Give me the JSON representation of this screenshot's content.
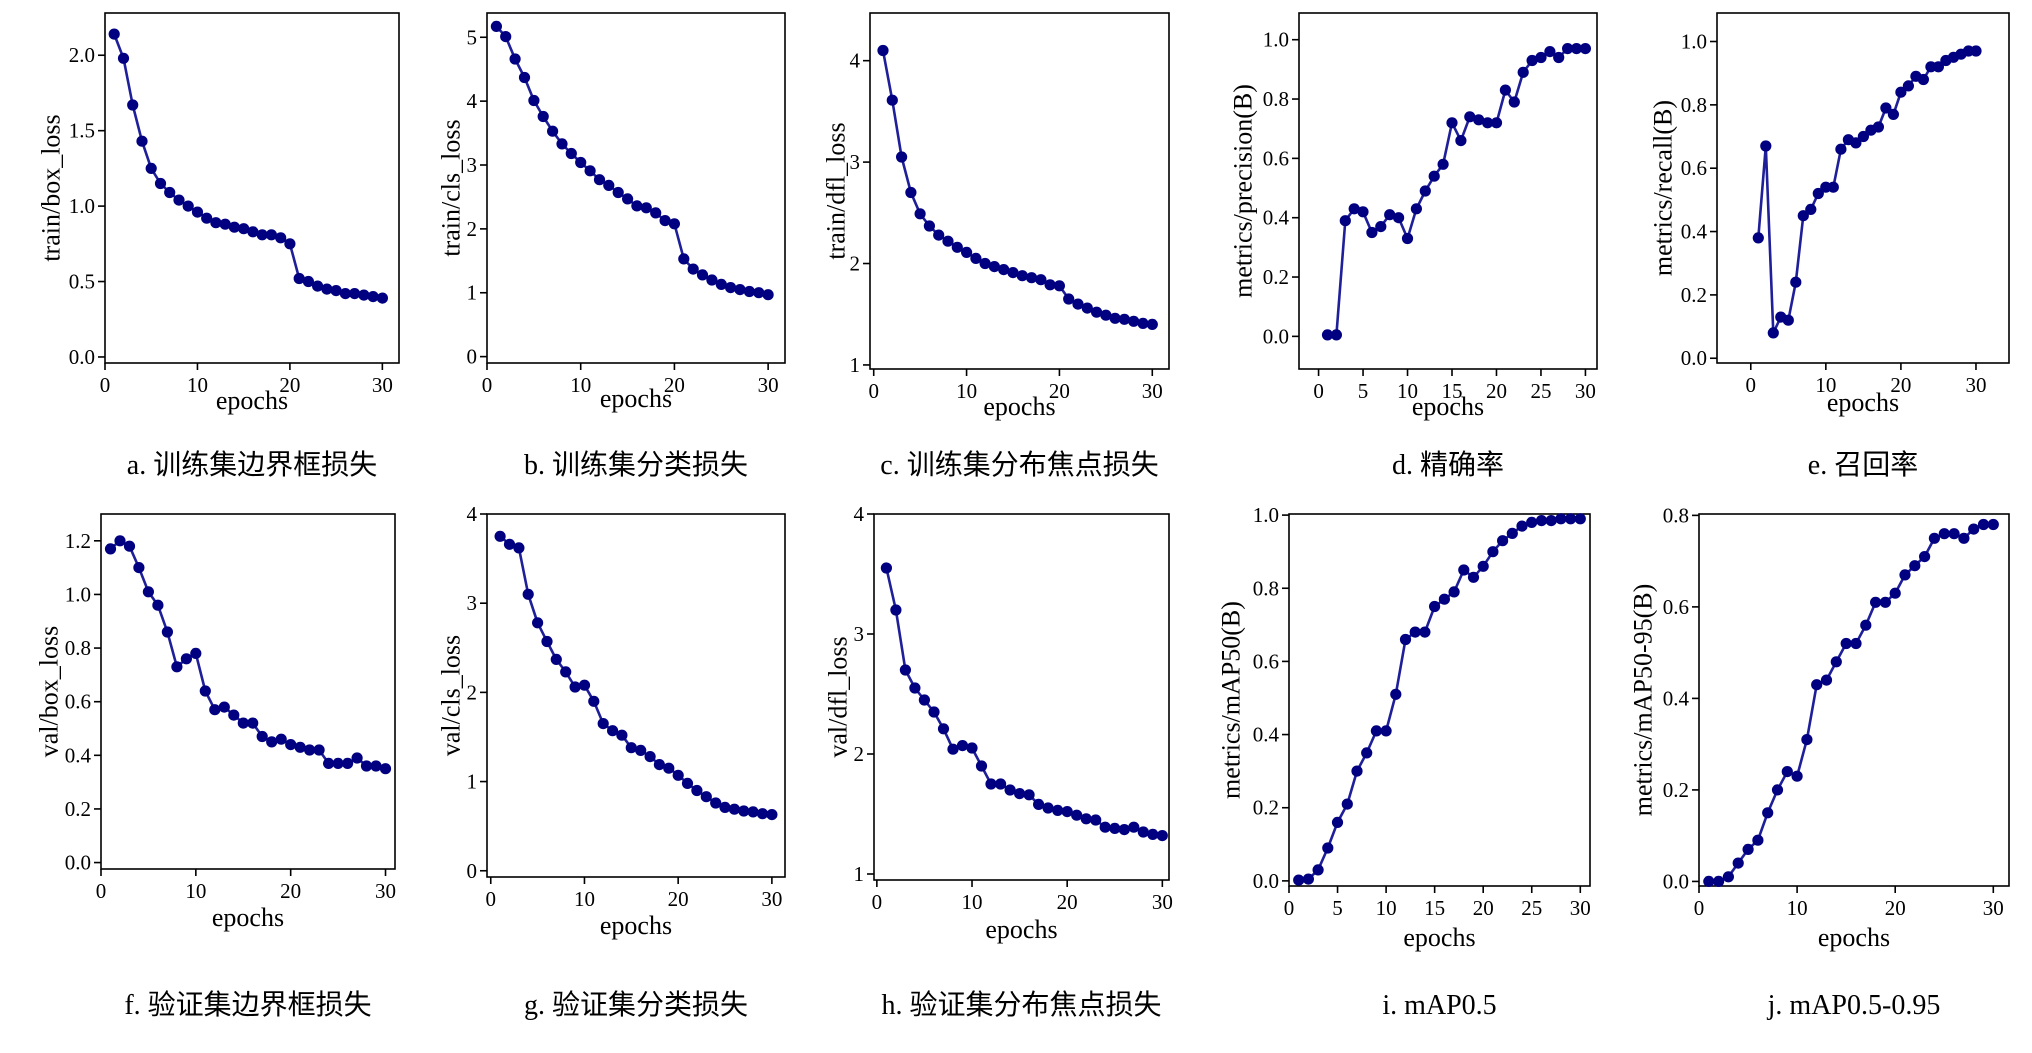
{
  "colors": {
    "line": "#1f1f99",
    "marker": "#000080",
    "axis": "#000000"
  },
  "chart_data": [
    {
      "type": "line",
      "caption": "a. 训练集边界框损失",
      "xlabel": "epochs",
      "ylabel": "train/box_loss",
      "grid": false,
      "xlim": [
        0,
        31.8
      ],
      "ylim": [
        -0.04,
        2.28
      ],
      "xticks": [
        "0",
        "10",
        "20",
        "30"
      ],
      "yticks": [
        "0.0",
        "0.5",
        "1.0",
        "1.5",
        "2.0"
      ],
      "x": [
        1,
        2,
        3,
        4,
        5,
        6,
        7,
        8,
        9,
        10,
        11,
        12,
        13,
        14,
        15,
        16,
        17,
        18,
        19,
        20,
        21,
        22,
        23,
        24,
        25,
        26,
        27,
        28,
        29,
        30
      ],
      "y": [
        2.14,
        1.98,
        1.67,
        1.43,
        1.25,
        1.15,
        1.09,
        1.04,
        1.0,
        0.96,
        0.92,
        0.89,
        0.88,
        0.86,
        0.85,
        0.83,
        0.81,
        0.81,
        0.79,
        0.75,
        0.52,
        0.5,
        0.47,
        0.45,
        0.44,
        0.42,
        0.42,
        0.41,
        0.4,
        0.39
      ]
    },
    {
      "type": "line",
      "caption": "b. 训练集分类损失",
      "xlabel": "epochs",
      "ylabel": "train/cls_loss",
      "grid": false,
      "xlim": [
        0,
        31.8
      ],
      "ylim": [
        -0.1,
        5.38
      ],
      "xticks": [
        "0",
        "10",
        "20",
        "30"
      ],
      "yticks": [
        "0",
        "1",
        "2",
        "3",
        "4",
        "5"
      ],
      "x": [
        1,
        2,
        3,
        4,
        5,
        6,
        7,
        8,
        9,
        10,
        11,
        12,
        13,
        14,
        15,
        16,
        17,
        18,
        19,
        20,
        21,
        22,
        23,
        24,
        25,
        26,
        27,
        28,
        29,
        30
      ],
      "y": [
        5.17,
        5.01,
        4.66,
        4.37,
        4.01,
        3.76,
        3.53,
        3.33,
        3.18,
        3.04,
        2.91,
        2.77,
        2.68,
        2.57,
        2.47,
        2.36,
        2.33,
        2.25,
        2.13,
        2.08,
        1.53,
        1.37,
        1.28,
        1.2,
        1.13,
        1.08,
        1.05,
        1.02,
        1.0,
        0.97
      ]
    },
    {
      "type": "line",
      "caption": "c. 训练集分布焦点损失",
      "xlabel": "epochs",
      "ylabel": "train/dfl_loss",
      "grid": false,
      "xlim": [
        -0.4,
        31.8
      ],
      "ylim": [
        0.96,
        4.47
      ],
      "xticks": [
        "0",
        "10",
        "20",
        "30"
      ],
      "yticks": [
        "1",
        "2",
        "3",
        "4"
      ],
      "x": [
        1,
        2,
        3,
        4,
        5,
        6,
        7,
        8,
        9,
        10,
        11,
        12,
        13,
        14,
        15,
        16,
        17,
        18,
        19,
        20,
        21,
        22,
        23,
        24,
        25,
        26,
        27,
        28,
        29,
        30
      ],
      "y": [
        4.1,
        3.61,
        3.05,
        2.7,
        2.49,
        2.37,
        2.28,
        2.22,
        2.16,
        2.11,
        2.05,
        2.0,
        1.97,
        1.94,
        1.91,
        1.88,
        1.86,
        1.84,
        1.79,
        1.78,
        1.65,
        1.6,
        1.56,
        1.52,
        1.49,
        1.46,
        1.45,
        1.43,
        1.41,
        1.4
      ]
    },
    {
      "type": "line",
      "caption": "d. 精确率",
      "xlabel": "epochs",
      "ylabel": "metrics/precision(B)",
      "grid": false,
      "xlim": [
        -2.2,
        31.3
      ],
      "ylim": [
        -0.11,
        1.09
      ],
      "xticks": [
        "0",
        "5",
        "10",
        "15",
        "20",
        "25",
        "30"
      ],
      "yticks": [
        "0.0",
        "0.2",
        "0.4",
        "0.6",
        "0.8",
        "1.0"
      ],
      "x": [
        1,
        2,
        3,
        4,
        5,
        6,
        7,
        8,
        9,
        10,
        11,
        12,
        13,
        14,
        15,
        16,
        17,
        18,
        19,
        20,
        21,
        22,
        23,
        24,
        25,
        26,
        27,
        28,
        29,
        30
      ],
      "y": [
        0.005,
        0.005,
        0.39,
        0.43,
        0.42,
        0.35,
        0.37,
        0.41,
        0.4,
        0.33,
        0.43,
        0.49,
        0.54,
        0.58,
        0.72,
        0.66,
        0.74,
        0.73,
        0.72,
        0.72,
        0.83,
        0.79,
        0.89,
        0.93,
        0.94,
        0.96,
        0.94,
        0.97,
        0.97,
        0.97
      ]
    },
    {
      "type": "line",
      "caption": "e. 召回率",
      "xlabel": "epochs",
      "ylabel": "metrics/recall(B)",
      "grid": false,
      "xlim": [
        -4.5,
        34.4
      ],
      "ylim": [
        -0.015,
        1.09
      ],
      "xticks": [
        "0",
        "10",
        "20",
        "30"
      ],
      "yticks": [
        "0.0",
        "0.2",
        "0.4",
        "0.6",
        "0.8",
        "1.0"
      ],
      "x": [
        1,
        2,
        3,
        4,
        5,
        6,
        7,
        8,
        9,
        10,
        11,
        12,
        13,
        14,
        15,
        16,
        17,
        18,
        19,
        20,
        21,
        22,
        23,
        24,
        25,
        26,
        27,
        28,
        29,
        30
      ],
      "y": [
        0.38,
        0.67,
        0.08,
        0.13,
        0.12,
        0.24,
        0.45,
        0.47,
        0.52,
        0.54,
        0.54,
        0.66,
        0.69,
        0.68,
        0.7,
        0.72,
        0.73,
        0.79,
        0.77,
        0.84,
        0.86,
        0.89,
        0.88,
        0.92,
        0.92,
        0.94,
        0.95,
        0.96,
        0.97,
        0.97
      ]
    },
    {
      "type": "line",
      "caption": "f. 验证集边界框损失",
      "xlabel": "epochs",
      "ylabel": "val/box_loss",
      "grid": false,
      "xlim": [
        0,
        31
      ],
      "ylim": [
        -0.024,
        1.3
      ],
      "xticks": [
        "0",
        "10",
        "20",
        "30"
      ],
      "yticks": [
        "0.0",
        "0.2",
        "0.4",
        "0.6",
        "0.8",
        "1.0",
        "1.2"
      ],
      "x": [
        1,
        2,
        3,
        4,
        5,
        6,
        7,
        8,
        9,
        10,
        11,
        12,
        13,
        14,
        15,
        16,
        17,
        18,
        19,
        20,
        21,
        22,
        23,
        24,
        25,
        26,
        27,
        28,
        29,
        30
      ],
      "y": [
        1.17,
        1.2,
        1.18,
        1.1,
        1.01,
        0.96,
        0.86,
        0.73,
        0.76,
        0.78,
        0.64,
        0.57,
        0.58,
        0.55,
        0.52,
        0.52,
        0.47,
        0.45,
        0.46,
        0.44,
        0.43,
        0.42,
        0.42,
        0.37,
        0.37,
        0.37,
        0.39,
        0.36,
        0.36,
        0.35
      ]
    },
    {
      "type": "line",
      "caption": "g. 验证集分类损失",
      "xlabel": "epochs",
      "ylabel": "val/cls_loss",
      "grid": false,
      "xlim": [
        -0.4,
        31.4
      ],
      "ylim": [
        -0.07,
        4.0
      ],
      "xticks": [
        "0",
        "10",
        "20",
        "30"
      ],
      "yticks": [
        "0",
        "1",
        "2",
        "3",
        "4"
      ],
      "x": [
        1,
        2,
        3,
        4,
        5,
        6,
        7,
        8,
        9,
        10,
        11,
        12,
        13,
        14,
        15,
        16,
        17,
        18,
        19,
        20,
        21,
        22,
        23,
        24,
        25,
        26,
        27,
        28,
        29,
        30
      ],
      "y": [
        3.75,
        3.66,
        3.62,
        3.1,
        2.78,
        2.57,
        2.37,
        2.23,
        2.06,
        2.08,
        1.9,
        1.65,
        1.57,
        1.52,
        1.38,
        1.35,
        1.28,
        1.19,
        1.15,
        1.07,
        0.98,
        0.9,
        0.83,
        0.76,
        0.71,
        0.69,
        0.67,
        0.66,
        0.64,
        0.63
      ]
    },
    {
      "type": "line",
      "caption": "h. 验证集分布焦点损失",
      "xlabel": "epochs",
      "ylabel": "val/dfl_loss",
      "grid": false,
      "xlim": [
        -0.3,
        30.7
      ],
      "ylim": [
        0.95,
        4.0
      ],
      "xticks": [
        "0",
        "10",
        "20",
        "30"
      ],
      "yticks": [
        "1",
        "2",
        "3",
        "4"
      ],
      "x": [
        1,
        2,
        3,
        4,
        5,
        6,
        7,
        8,
        9,
        10,
        11,
        12,
        13,
        14,
        15,
        16,
        17,
        18,
        19,
        20,
        21,
        22,
        23,
        24,
        25,
        26,
        27,
        28,
        29,
        30
      ],
      "y": [
        3.55,
        3.2,
        2.7,
        2.55,
        2.45,
        2.35,
        2.21,
        2.04,
        2.07,
        2.05,
        1.9,
        1.75,
        1.75,
        1.7,
        1.67,
        1.66,
        1.58,
        1.55,
        1.53,
        1.52,
        1.49,
        1.46,
        1.45,
        1.39,
        1.38,
        1.37,
        1.39,
        1.35,
        1.33,
        1.32
      ]
    },
    {
      "type": "line",
      "caption": "i. mAP0.5",
      "xlabel": "epochs",
      "ylabel": "metrics/mAP50(B)",
      "grid": false,
      "xlim": [
        0,
        31.0
      ],
      "ylim": [
        -0.014,
        1.003
      ],
      "xticks": [
        "0",
        "5",
        "10",
        "15",
        "20",
        "25",
        "30"
      ],
      "yticks": [
        "0.0",
        "0.2",
        "0.4",
        "0.6",
        "0.8",
        "1.0"
      ],
      "x": [
        1,
        2,
        3,
        4,
        5,
        6,
        7,
        8,
        9,
        10,
        11,
        12,
        13,
        14,
        15,
        16,
        17,
        18,
        19,
        20,
        21,
        22,
        23,
        24,
        25,
        26,
        27,
        28,
        29,
        30
      ],
      "y": [
        0.002,
        0.005,
        0.03,
        0.09,
        0.16,
        0.21,
        0.3,
        0.35,
        0.41,
        0.41,
        0.51,
        0.66,
        0.68,
        0.68,
        0.75,
        0.77,
        0.79,
        0.85,
        0.83,
        0.86,
        0.9,
        0.93,
        0.95,
        0.97,
        0.98,
        0.985,
        0.985,
        0.99,
        0.99,
        0.99
      ]
    },
    {
      "type": "line",
      "caption": "j. mAP0.5-0.95",
      "xlabel": "epochs",
      "ylabel": "metrics/mAP50-95(B)",
      "grid": false,
      "xlim": [
        0,
        31.6
      ],
      "ylim": [
        -0.01,
        0.803
      ],
      "xticks": [
        "0",
        "10",
        "20",
        "30"
      ],
      "yticks": [
        "0.0",
        "0.2",
        "0.4",
        "0.6",
        "0.8"
      ],
      "x": [
        1,
        2,
        3,
        4,
        5,
        6,
        7,
        8,
        9,
        10,
        11,
        12,
        13,
        14,
        15,
        16,
        17,
        18,
        19,
        20,
        21,
        22,
        23,
        24,
        25,
        26,
        27,
        28,
        29,
        30
      ],
      "y": [
        0.0,
        0.0,
        0.01,
        0.04,
        0.07,
        0.09,
        0.15,
        0.2,
        0.24,
        0.23,
        0.31,
        0.43,
        0.44,
        0.48,
        0.52,
        0.52,
        0.56,
        0.61,
        0.61,
        0.63,
        0.67,
        0.69,
        0.71,
        0.75,
        0.76,
        0.76,
        0.75,
        0.77,
        0.78,
        0.78
      ]
    }
  ]
}
